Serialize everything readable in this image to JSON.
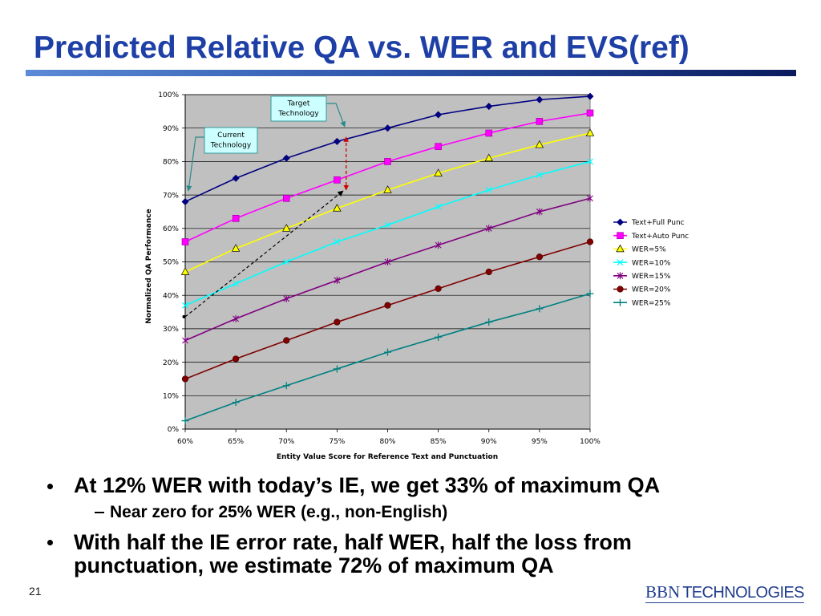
{
  "slide": {
    "title": "Predicted Relative QA vs. WER and EVS(ref)",
    "page_number": "21",
    "logo": {
      "primary": "BBN",
      "secondary": "TECHNOLOGIES"
    },
    "colors": {
      "title": "#1e3fa6",
      "rule_start": "#5b8ad6",
      "rule_mid": "#2f57ad",
      "rule_end": "#0b1b5e",
      "logo": "#1f3c8e",
      "text": "#000000"
    }
  },
  "bullets": [
    {
      "text": "At 12% WER with today’s IE, we get 33% of maximum QA",
      "sub": [
        {
          "text": "Near zero for 25% WER (e.g., non-English)"
        }
      ]
    },
    {
      "text": "With half the IE error rate, half WER, half the loss from punctuation, we estimate 72% of maximum QA"
    }
  ],
  "chart_data": {
    "type": "line",
    "xlabel": "Entity Value Score for Reference Text and Punctuation",
    "ylabel": "Normalized QA Performance",
    "x": [
      60,
      65,
      70,
      75,
      80,
      85,
      90,
      95,
      100
    ],
    "x_tick_labels": [
      "60%",
      "65%",
      "70%",
      "75%",
      "80%",
      "85%",
      "90%",
      "95%",
      "100%"
    ],
    "y_tick_labels": [
      "0%",
      "10%",
      "20%",
      "30%",
      "40%",
      "50%",
      "60%",
      "70%",
      "80%",
      "90%",
      "100%"
    ],
    "xlim": [
      60,
      100
    ],
    "ylim": [
      0,
      100
    ],
    "y_grid": true,
    "x_grid": false,
    "legend_position": "right",
    "plot_background": "#c0c0c0",
    "series": [
      {
        "name": "Text+Full Punc",
        "color": "#000080",
        "marker": "diamond",
        "values": [
          68,
          75,
          81,
          86,
          90,
          94,
          96.5,
          98.5,
          99.5
        ]
      },
      {
        "name": "Text+Auto Punc",
        "color": "#ff00ff",
        "marker": "square",
        "values": [
          56,
          63,
          69,
          74.5,
          80,
          84.5,
          88.5,
          92,
          94.5
        ]
      },
      {
        "name": "WER=5%",
        "color": "#ffff00",
        "marker": "triangle",
        "values": [
          47,
          54,
          60,
          66,
          71.5,
          76.5,
          81,
          85,
          88.5
        ]
      },
      {
        "name": "WER=10%",
        "color": "#00ffff",
        "marker": "x",
        "values": [
          37,
          43.5,
          50,
          56,
          61,
          66.5,
          71.5,
          76,
          80
        ]
      },
      {
        "name": "WER=15%",
        "color": "#800080",
        "marker": "star",
        "values": [
          26.5,
          33,
          39,
          44.5,
          50,
          55,
          60,
          65,
          69
        ]
      },
      {
        "name": "WER=20%",
        "color": "#800000",
        "marker": "circle",
        "values": [
          15,
          21,
          26.5,
          32,
          37,
          42,
          47,
          51.5,
          56
        ]
      },
      {
        "name": "WER=25%",
        "color": "#008080",
        "marker": "plus",
        "values": [
          2.5,
          8,
          13,
          18,
          23,
          27.5,
          32,
          36,
          40.5
        ]
      }
    ],
    "annotations": {
      "target": {
        "lines": [
          "Target",
          "Technology"
        ],
        "fill": "#ccffff",
        "border": "#339999"
      },
      "current": {
        "lines": [
          "Current",
          "Technology"
        ],
        "fill": "#ccffff",
        "border": "#339999"
      },
      "arrow_colors": {
        "callout": "#2a8a8a",
        "current_to_target": "#000000",
        "gap": "#d00000"
      }
    }
  }
}
